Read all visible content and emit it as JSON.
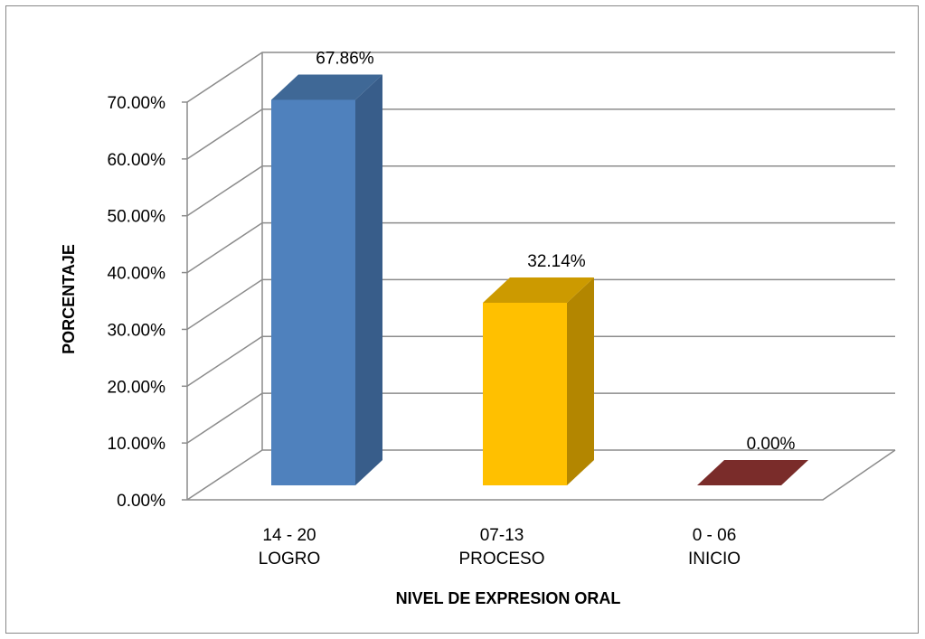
{
  "chart_data": {
    "type": "bar",
    "categories": [
      [
        "14 - 20",
        "LOGRO"
      ],
      [
        "07-13",
        "PROCESO"
      ],
      [
        "0 - 06",
        "INICIO"
      ]
    ],
    "values": [
      67.86,
      32.14,
      0.0
    ],
    "value_labels": [
      "67.86%",
      "32.14%",
      "0.00%"
    ],
    "bar_colors": [
      "#4F81BD",
      "#FFC000",
      "#953735"
    ],
    "bar_side_colors": [
      "#385D8A",
      "#B38600",
      "#6B2624"
    ],
    "bar_top_colors": [
      "#3F6896",
      "#CC9A00",
      "#7A2C2A"
    ],
    "xlabel": "NIVEL DE EXPRESION ORAL",
    "ylabel": "PORCENTAJE",
    "ylim": [
      0,
      70
    ],
    "yticks": [
      0,
      10,
      20,
      30,
      40,
      50,
      60,
      70
    ],
    "ytick_labels": [
      "0.00%",
      "10.00%",
      "20.00%",
      "30.00%",
      "40.00%",
      "50.00%",
      "60.00%",
      "70.00%"
    ],
    "grid": true,
    "style": "3d-column"
  }
}
